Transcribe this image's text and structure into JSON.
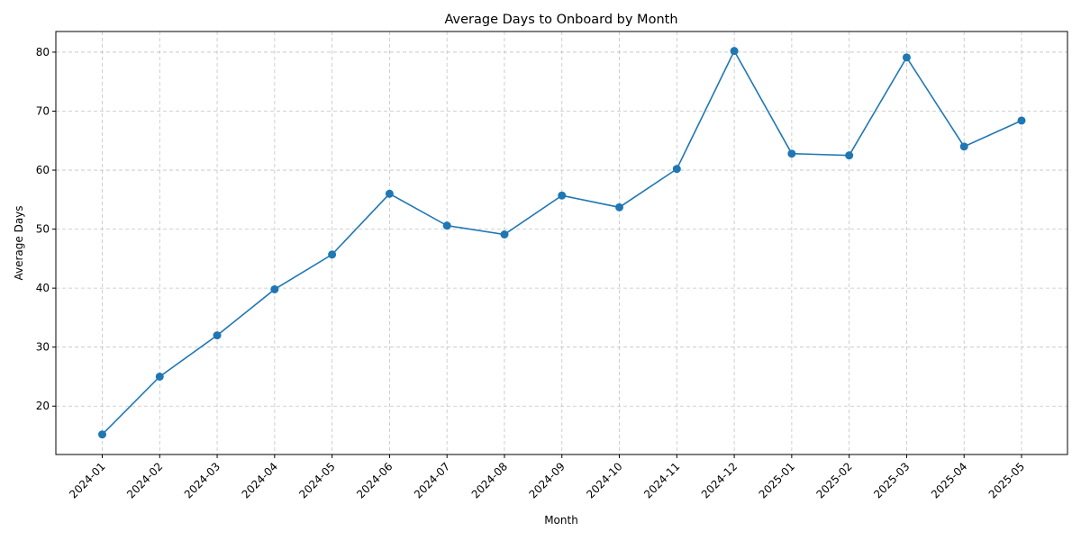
{
  "chart_data": {
    "type": "line",
    "title": "Average Days to Onboard by Month",
    "xlabel": "Month",
    "ylabel": "Average Days",
    "categories": [
      "2024-01",
      "2024-02",
      "2024-03",
      "2024-04",
      "2024-05",
      "2024-06",
      "2024-07",
      "2024-08",
      "2024-09",
      "2024-10",
      "2024-11",
      "2024-12",
      "2025-01",
      "2025-02",
      "2025-03",
      "2025-04",
      "2025-05"
    ],
    "series": [
      {
        "values": [
          15.2,
          25.0,
          32.0,
          39.8,
          45.7,
          56.0,
          50.6,
          49.1,
          55.7,
          53.7,
          60.2,
          80.2,
          62.8,
          62.5,
          79.1,
          64.0,
          68.4
        ],
        "color": "#1f77b4",
        "marker": "circle"
      }
    ],
    "ylim": [
      11.8,
      83.5
    ],
    "yticks": [
      20,
      30,
      40,
      50,
      60,
      70,
      80
    ],
    "grid": true,
    "legend": "none"
  }
}
